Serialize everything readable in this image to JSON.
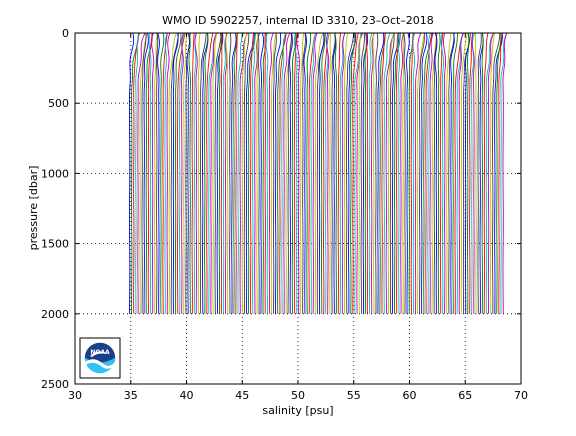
{
  "chart_data": {
    "type": "line",
    "title": "WMO ID 5902257, internal ID 3310, 23–Oct–2018",
    "xlabel": "salinity [psu]",
    "ylabel": "pressure [dbar]",
    "xlim": [
      30,
      70
    ],
    "ylim": [
      2500,
      0
    ],
    "y_reversed": true,
    "grid": "dotted",
    "x_ticks": [
      30,
      35,
      40,
      45,
      50,
      55,
      60,
      65,
      70
    ],
    "y_ticks": [
      0,
      500,
      1000,
      1500,
      2000,
      2500
    ],
    "x_tick_labels": [
      "30",
      "35",
      "40",
      "45",
      "50",
      "55",
      "60",
      "65",
      "70"
    ],
    "y_tick_labels": [
      "0",
      "500",
      "1000",
      "1500",
      "2000",
      "2500"
    ],
    "waterfall": {
      "description": "salinity profiles offset successively along the salinity axis",
      "profile_count": 180,
      "first_profile_deep_salinity": 34.9,
      "last_profile_deep_salinity": 68.4,
      "max_pressure": 2000,
      "surface_pressure": 0
    },
    "series_colors": [
      "#0000ff",
      "#008000",
      "#ff0000",
      "#00bfbf",
      "#bf00bf",
      "#bfbf00",
      "#404040"
    ],
    "logo": {
      "text": "NOAA",
      "colors": {
        "frame": "#000000",
        "dark_blue": "#1b3f8b",
        "light_blue": "#33c1f2",
        "white": "#ffffff"
      }
    }
  }
}
